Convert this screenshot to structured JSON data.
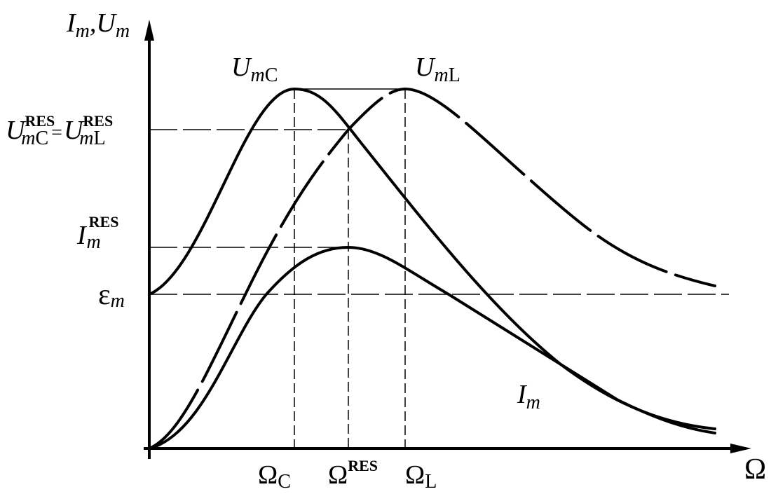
{
  "labels": {
    "y_axis": [
      {
        "main": "I",
        "sub": "m"
      },
      {
        "main": ",U",
        "sub": "m"
      }
    ],
    "x_axis": "Ω",
    "curve_umc": {
      "main": "U",
      "sub": "m",
      "sub2": "C"
    },
    "curve_uml": {
      "main": "U",
      "sub": "m",
      "sub2": "L"
    },
    "curve_im": {
      "main": "I",
      "sub": "m"
    },
    "level_u_res": {
      "left": {
        "main": "U",
        "sub": "m",
        "sub2": "C",
        "sup": "RES"
      },
      "eq": "=",
      "right": {
        "main": "U",
        "sub": "m",
        "sub2": "L",
        "sup": "RES"
      }
    },
    "level_i_res": {
      "main": "I",
      "sub": "m",
      "sup": "RES"
    },
    "level_emf": {
      "main": "ε",
      "sub": "m"
    },
    "omega_c": {
      "main": "Ω",
      "sub": "C"
    },
    "omega_res": {
      "main": "Ω",
      "sup": "RES"
    },
    "omega_l": {
      "main": "Ω",
      "sub": "L"
    }
  }
}
